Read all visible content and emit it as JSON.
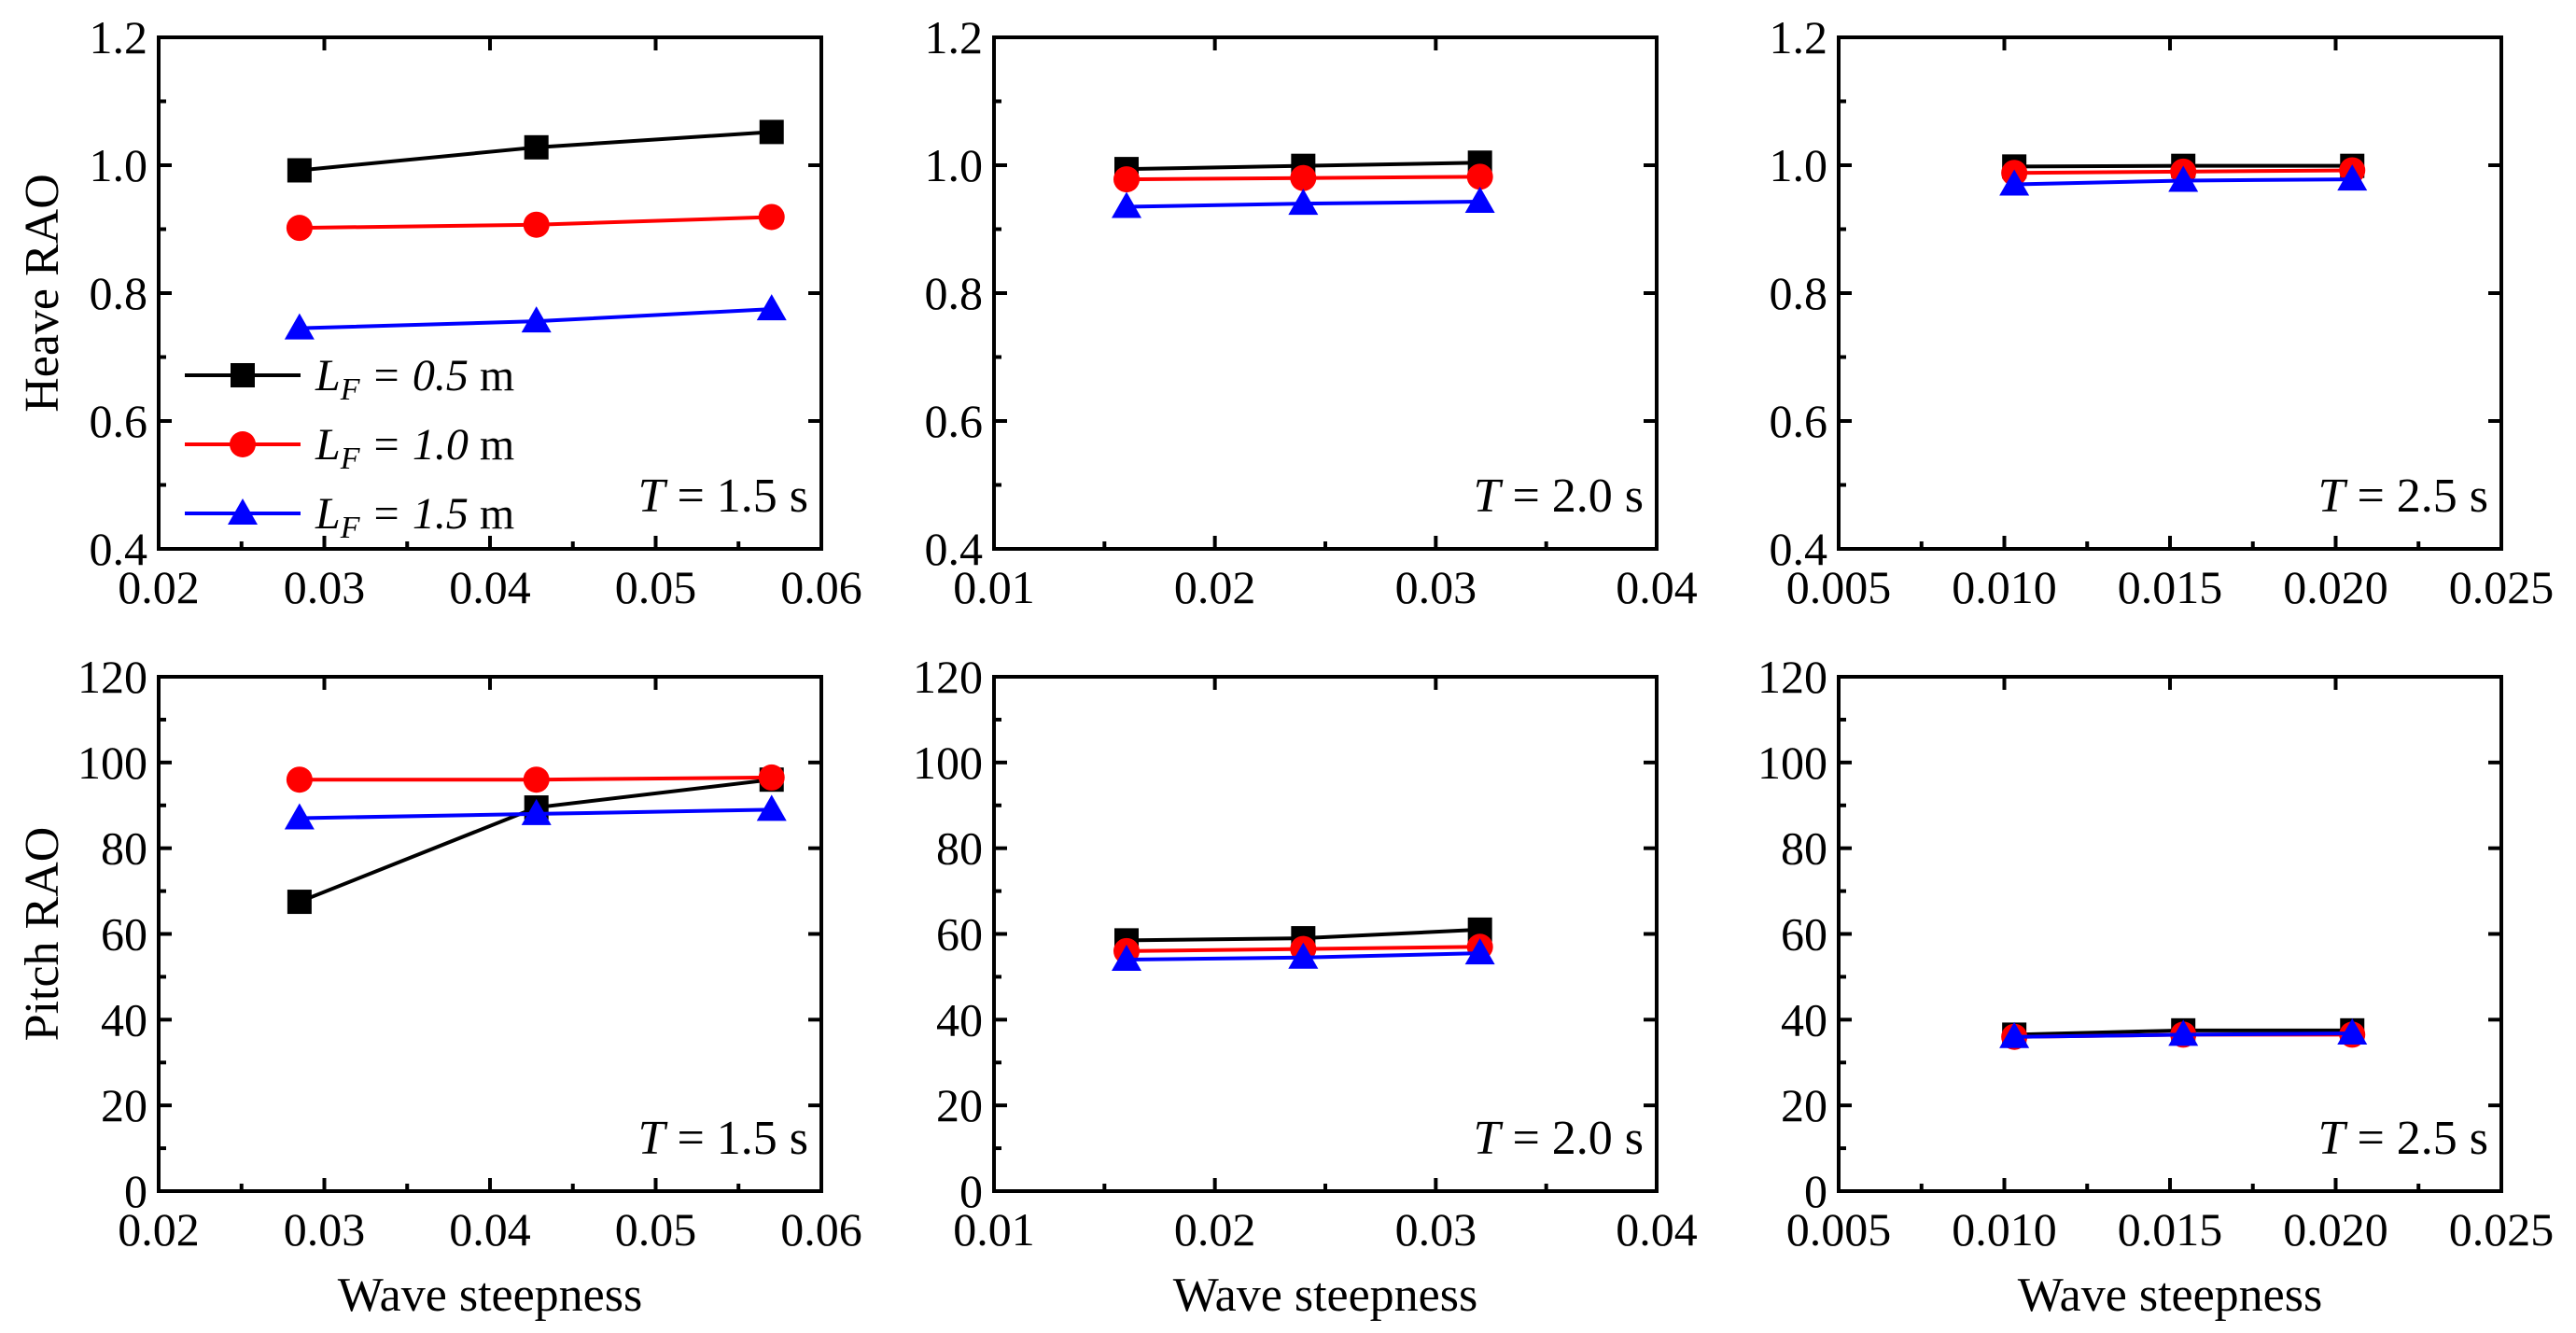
{
  "colors": {
    "black": "#000000",
    "red": "#ff0000",
    "blue": "#0000ff"
  },
  "chart_data": [
    {
      "type": "line",
      "ylabel": "Heave RAO",
      "xlabel": "",
      "annotation": {
        "italic": "T",
        "text": " = 1.5 s"
      },
      "xlim": [
        0.02,
        0.06
      ],
      "xticks": [
        "0.02",
        "0.03",
        "0.04",
        "0.05",
        "0.06"
      ],
      "ylim": [
        0.4,
        1.2
      ],
      "yticks": [
        "0.4",
        "0.6",
        "0.8",
        "1.0",
        "1.2"
      ],
      "x": [
        0.0285,
        0.0428,
        0.057
      ],
      "series": [
        {
          "color": "black",
          "marker": "square",
          "values": [
            0.992,
            1.028,
            1.052
          ]
        },
        {
          "color": "red",
          "marker": "circle",
          "values": [
            0.902,
            0.907,
            0.919
          ]
        },
        {
          "color": "blue",
          "marker": "triangle",
          "values": [
            0.745,
            0.756,
            0.775
          ]
        }
      ],
      "legend": {
        "placement": "left",
        "entries": [
          {
            "italic": "L",
            "sub": "F",
            "value": " = 0.5",
            "unit": " m"
          },
          {
            "italic": "L",
            "sub": "F",
            "value": " = 1.0",
            "unit": " m"
          },
          {
            "italic": "L",
            "sub": "F",
            "value": " = 1.5",
            "unit": " m"
          }
        ]
      }
    },
    {
      "type": "line",
      "ylabel": "",
      "xlabel": "",
      "annotation": {
        "italic": "T",
        "text": " = 2.0 s"
      },
      "xlim": [
        0.01,
        0.04
      ],
      "xticks": [
        "0.01",
        "0.02",
        "0.03",
        "0.04"
      ],
      "ylim": [
        0.4,
        1.2
      ],
      "yticks": [
        "0.4",
        "0.6",
        "0.8",
        "1.0",
        "1.2"
      ],
      "x": [
        0.016,
        0.024,
        0.032
      ],
      "series": [
        {
          "color": "black",
          "marker": "square",
          "values": [
            0.994,
            0.999,
            1.004
          ]
        },
        {
          "color": "red",
          "marker": "circle",
          "values": [
            0.978,
            0.98,
            0.982
          ]
        },
        {
          "color": "blue",
          "marker": "triangle",
          "values": [
            0.935,
            0.94,
            0.943
          ]
        }
      ]
    },
    {
      "type": "line",
      "ylabel": "",
      "xlabel": "",
      "annotation": {
        "italic": "T",
        "text": " = 2.5 s"
      },
      "xlim": [
        0.005,
        0.025
      ],
      "xticks": [
        "0.005",
        "0.010",
        "0.015",
        "0.020",
        "0.025"
      ],
      "ylim": [
        0.4,
        1.2
      ],
      "yticks": [
        "0.4",
        "0.6",
        "0.8",
        "1.0",
        "1.2"
      ],
      "x": [
        0.0103,
        0.0154,
        0.0205
      ],
      "series": [
        {
          "color": "black",
          "marker": "square",
          "values": [
            0.998,
            0.999,
            0.999
          ]
        },
        {
          "color": "red",
          "marker": "circle",
          "values": [
            0.988,
            0.99,
            0.992
          ]
        },
        {
          "color": "blue",
          "marker": "triangle",
          "values": [
            0.97,
            0.976,
            0.978
          ]
        }
      ]
    },
    {
      "type": "line",
      "ylabel": "Pitch RAO",
      "xlabel": "Wave steepness",
      "annotation": {
        "italic": "T",
        "text": " = 1.5 s"
      },
      "xlim": [
        0.02,
        0.06
      ],
      "xticks": [
        "0.02",
        "0.03",
        "0.04",
        "0.05",
        "0.06"
      ],
      "ylim": [
        0,
        120
      ],
      "yticks": [
        "0",
        "20",
        "40",
        "60",
        "80",
        "100",
        "120"
      ],
      "x": [
        0.0285,
        0.0428,
        0.057
      ],
      "series": [
        {
          "color": "black",
          "marker": "square",
          "values": [
            67.5,
            89.5,
            96.0
          ]
        },
        {
          "color": "red",
          "marker": "circle",
          "values": [
            96.0,
            96.0,
            96.5
          ]
        },
        {
          "color": "blue",
          "marker": "triangle",
          "values": [
            87.0,
            88.0,
            89.0
          ]
        }
      ]
    },
    {
      "type": "line",
      "ylabel": "",
      "xlabel": "Wave steepness",
      "annotation": {
        "italic": "T",
        "text": " = 2.0 s"
      },
      "xlim": [
        0.01,
        0.04
      ],
      "xticks": [
        "0.01",
        "0.02",
        "0.03",
        "0.04"
      ],
      "ylim": [
        0,
        120
      ],
      "yticks": [
        "0",
        "20",
        "40",
        "60",
        "80",
        "100",
        "120"
      ],
      "x": [
        0.016,
        0.024,
        0.032
      ],
      "series": [
        {
          "color": "black",
          "marker": "square",
          "values": [
            58.5,
            59.0,
            61.0
          ]
        },
        {
          "color": "red",
          "marker": "circle",
          "values": [
            56.0,
            56.5,
            57.0
          ]
        },
        {
          "color": "blue",
          "marker": "triangle",
          "values": [
            54.0,
            54.5,
            55.5
          ]
        }
      ]
    },
    {
      "type": "line",
      "ylabel": "",
      "xlabel": "Wave steepness",
      "annotation": {
        "italic": "T",
        "text": " = 2.5 s"
      },
      "xlim": [
        0.005,
        0.025
      ],
      "xticks": [
        "0.005",
        "0.010",
        "0.015",
        "0.020",
        "0.025"
      ],
      "ylim": [
        0,
        120
      ],
      "yticks": [
        "0",
        "20",
        "40",
        "60",
        "80",
        "100",
        "120"
      ],
      "x": [
        0.0103,
        0.0154,
        0.0205
      ],
      "series": [
        {
          "color": "black",
          "marker": "square",
          "values": [
            36.5,
            37.5,
            37.5
          ]
        },
        {
          "color": "red",
          "marker": "circle",
          "values": [
            36.0,
            36.5,
            36.5
          ]
        },
        {
          "color": "blue",
          "marker": "triangle",
          "values": [
            36.0,
            36.5,
            36.8
          ]
        }
      ]
    }
  ]
}
